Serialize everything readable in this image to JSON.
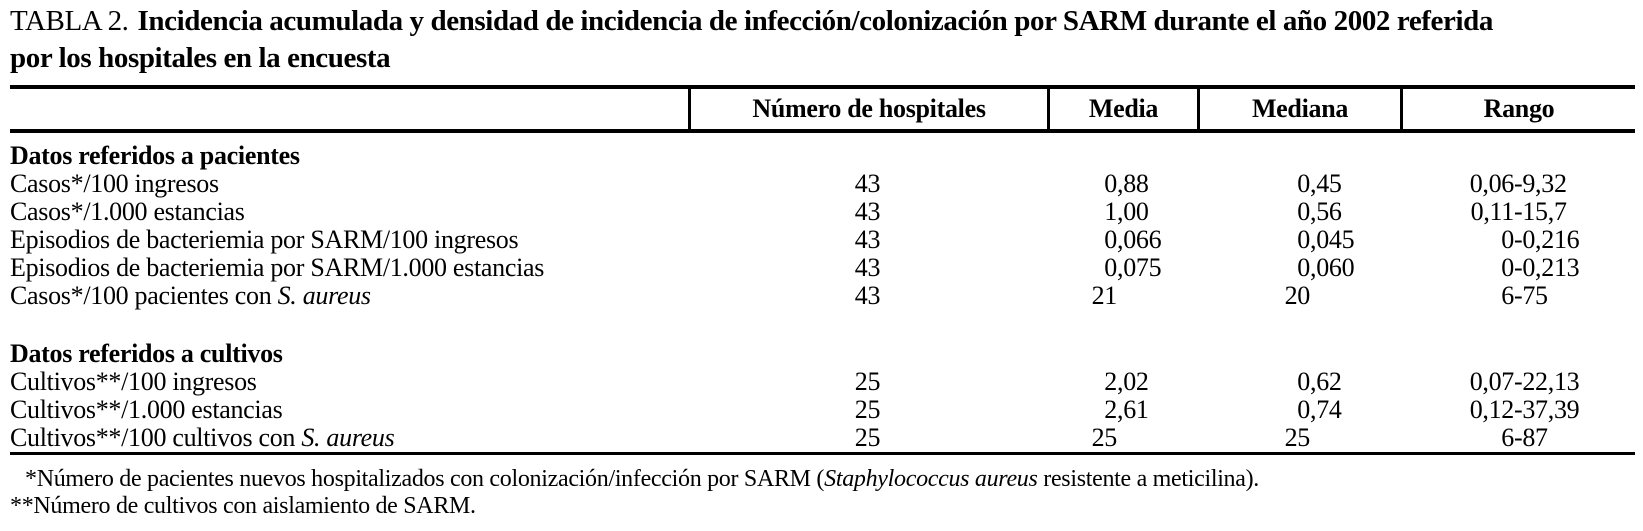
{
  "title": {
    "label": "TABLA 2.",
    "line1": "Incidencia acumulada y densidad de incidencia de infección/colonización por SARM durante el año 2002 referida",
    "line2": "por los hospitales en la encuesta"
  },
  "table": {
    "columns": [
      "",
      "Número de hospitales",
      "Media",
      "Mediana",
      "Rango"
    ],
    "sections": [
      {
        "header": "Datos referidos a pacientes",
        "rows": [
          {
            "label": "Casos*/100 ingresos",
            "italic": "",
            "hospitales": "43",
            "media": "0,88",
            "mediana": "0,45",
            "rango": "0,06-9,32"
          },
          {
            "label": "Casos*/1.000 estancias",
            "italic": "",
            "hospitales": "43",
            "media": "1,00",
            "mediana": "0,56",
            "rango": "0,11-15,7"
          },
          {
            "label": "Episodios de bacteriemia por SARM/100 ingresos",
            "italic": "",
            "hospitales": "43",
            "media": "0,066",
            "mediana": "0,045",
            "rango": "0-0,216"
          },
          {
            "label": "Episodios de bacteriemia por SARM/1.000 estancias",
            "italic": "",
            "hospitales": "43",
            "media": "0,075",
            "mediana": "0,060",
            "rango": "0-0,213"
          },
          {
            "label": "Casos*/100 pacientes con ",
            "italic": "S. aureus",
            "hospitales": "43",
            "media": "21",
            "mediana": "20",
            "rango": "6-75"
          }
        ]
      },
      {
        "header": "Datos referidos a cultivos",
        "rows": [
          {
            "label": "Cultivos**/100 ingresos",
            "italic": "",
            "hospitales": "25",
            "media": "2,02",
            "mediana": "0,62",
            "rango": "0,07-22,13"
          },
          {
            "label": "Cultivos**/1.000 estancias",
            "italic": "",
            "hospitales": "25",
            "media": "2,61",
            "mediana": "0,74",
            "rango": "0,12-37,39"
          },
          {
            "label": "Cultivos**/100 cultivos con ",
            "italic": "S. aureus",
            "hospitales": "25",
            "media": "25",
            "mediana": "25",
            "rango": "6-87"
          }
        ]
      }
    ]
  },
  "footnotes": {
    "fn1_pre": "*Número de pacientes nuevos hospitalizados con colonización/infección por SARM (",
    "fn1_italic": "Staphylococcus aureus",
    "fn1_post": " resistente a meticilina).",
    "fn2": "**Número de cultivos con aislamiento de SARM."
  }
}
